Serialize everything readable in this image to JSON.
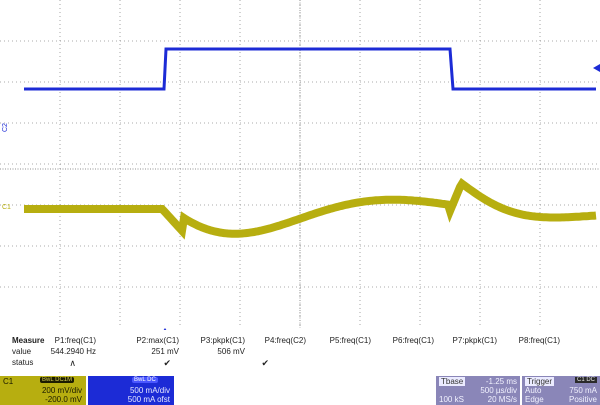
{
  "screen": {
    "c2_label": "C2",
    "c1_label": "C1",
    "colors": {
      "c1": "#b7ae10",
      "c2": "#1c2bd6",
      "grid": "#909090"
    }
  },
  "measure": {
    "row_labels": {
      "header": "Measure",
      "value": "value",
      "status": "status"
    },
    "params": [
      {
        "name": "P1:freq(C1)",
        "value": "544.2940 Hz",
        "status": "∧"
      },
      {
        "name": "P2:max(C1)",
        "value": "251 mV",
        "status": "✔"
      },
      {
        "name": "P3:pkpk(C1)",
        "value": "506 mV",
        "status": "✔"
      },
      {
        "name": "P4:freq(C2)",
        "value": "",
        "status": ""
      },
      {
        "name": "P5:freq(C1)",
        "value": "",
        "status": ""
      },
      {
        "name": "P6:freq(C1)",
        "value": "",
        "status": ""
      },
      {
        "name": "P7:pkpk(C1)",
        "value": "",
        "status": ""
      },
      {
        "name": "P8:freq(C1)",
        "value": "",
        "status": ""
      }
    ]
  },
  "channels": {
    "c1": {
      "name": "C1",
      "coupling": "BwL DC1M",
      "scale": "200 mV/div",
      "offset": "-200.0 mV"
    },
    "c2": {
      "name": "C2",
      "coupling": "BwL DC",
      "scale": "500 mA/div",
      "offset": "500 mA ofst"
    }
  },
  "timebase": {
    "title": "Tbase",
    "delay": "-1.25 ms",
    "per_div": "500 µs/div",
    "samples": "100 kS",
    "rate": "20 MS/s"
  },
  "trigger": {
    "title": "Trigger",
    "channel": "C1 DC",
    "mode": "Auto",
    "level": "750 mA",
    "type": "Edge",
    "slope": "Positive"
  }
}
